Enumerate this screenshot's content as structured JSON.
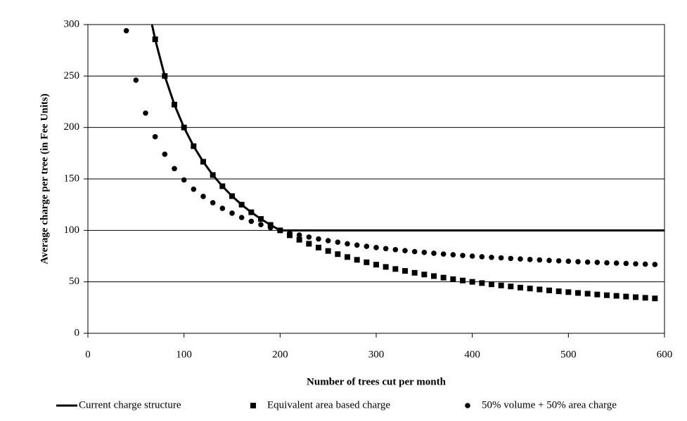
{
  "chart_data": {
    "type": "scatter",
    "xlabel": "Number of trees cut per month",
    "ylabel": "Average charge per tree (in Fee Units)",
    "xlim": [
      0,
      600
    ],
    "xticks": [
      0,
      100,
      200,
      300,
      400,
      500,
      600
    ],
    "ylim": [
      0,
      300
    ],
    "yticks": [
      0,
      50,
      100,
      150,
      200,
      250,
      300
    ],
    "grid": true,
    "legend": "bottom",
    "series": [
      {
        "name": "Current charge structure",
        "color": "#000000",
        "marker": "line",
        "x": [
          66.7,
          70,
          80,
          90,
          100,
          110,
          120,
          130,
          140,
          150,
          160,
          170,
          180,
          190,
          200,
          600
        ],
        "values": [
          300,
          285.7,
          250,
          222.2,
          200,
          181.8,
          166.7,
          153.8,
          142.9,
          133.3,
          125,
          117.6,
          111.1,
          105.3,
          100,
          100
        ]
      },
      {
        "name": "Equivalent area based charge",
        "color": "#000000",
        "marker": "square",
        "x": [
          70,
          80,
          90,
          100,
          110,
          120,
          130,
          140,
          150,
          160,
          170,
          180,
          190,
          200,
          210,
          220,
          230,
          240,
          250,
          260,
          270,
          280,
          290,
          300,
          310,
          320,
          330,
          340,
          350,
          360,
          370,
          380,
          390,
          400,
          410,
          420,
          430,
          440,
          450,
          460,
          470,
          480,
          490,
          500,
          510,
          520,
          530,
          540,
          550,
          560,
          570,
          580,
          590
        ],
        "values": [
          285.7,
          250,
          222.2,
          200,
          181.8,
          166.7,
          153.8,
          142.9,
          133.3,
          125,
          117.6,
          111.1,
          105.3,
          100,
          95.2,
          90.9,
          87,
          83.3,
          80,
          76.9,
          74.1,
          71.4,
          69,
          66.7,
          64.5,
          62.5,
          60.6,
          58.8,
          57.1,
          55.6,
          54.1,
          52.6,
          51.3,
          50,
          48.8,
          47.6,
          46.5,
          45.5,
          44.4,
          43.5,
          42.6,
          41.7,
          40.8,
          40,
          39.2,
          38.5,
          37.7,
          37,
          36.4,
          35.7,
          35.1,
          34.5,
          33.9
        ]
      },
      {
        "name": "50% volume + 50% area charge",
        "color": "#000000",
        "marker": "circle",
        "x": [
          40,
          50,
          60,
          70,
          80,
          90,
          100,
          110,
          120,
          130,
          140,
          150,
          160,
          170,
          180,
          190,
          200,
          210,
          220,
          230,
          240,
          250,
          260,
          270,
          280,
          290,
          300,
          310,
          320,
          330,
          340,
          350,
          360,
          370,
          380,
          390,
          400,
          410,
          420,
          430,
          440,
          450,
          460,
          470,
          480,
          490,
          500,
          510,
          520,
          530,
          540,
          550,
          560,
          570,
          580,
          590
        ],
        "values": [
          294,
          246,
          214,
          191,
          174,
          160,
          149,
          140,
          133,
          126.9,
          121.4,
          116.7,
          112.5,
          108.8,
          105.6,
          102.6,
          100,
          97.6,
          95.5,
          93.5,
          91.7,
          90,
          88.5,
          87,
          85.7,
          84.5,
          83.3,
          82.3,
          81.3,
          80.3,
          79.4,
          78.6,
          77.8,
          77,
          76.3,
          75.6,
          75,
          74.4,
          73.8,
          73.3,
          72.7,
          72.2,
          71.7,
          71.3,
          70.8,
          70.4,
          70,
          69.6,
          69.2,
          68.9,
          68.5,
          68.2,
          67.9,
          67.5,
          67.2,
          66.9
        ]
      }
    ]
  }
}
